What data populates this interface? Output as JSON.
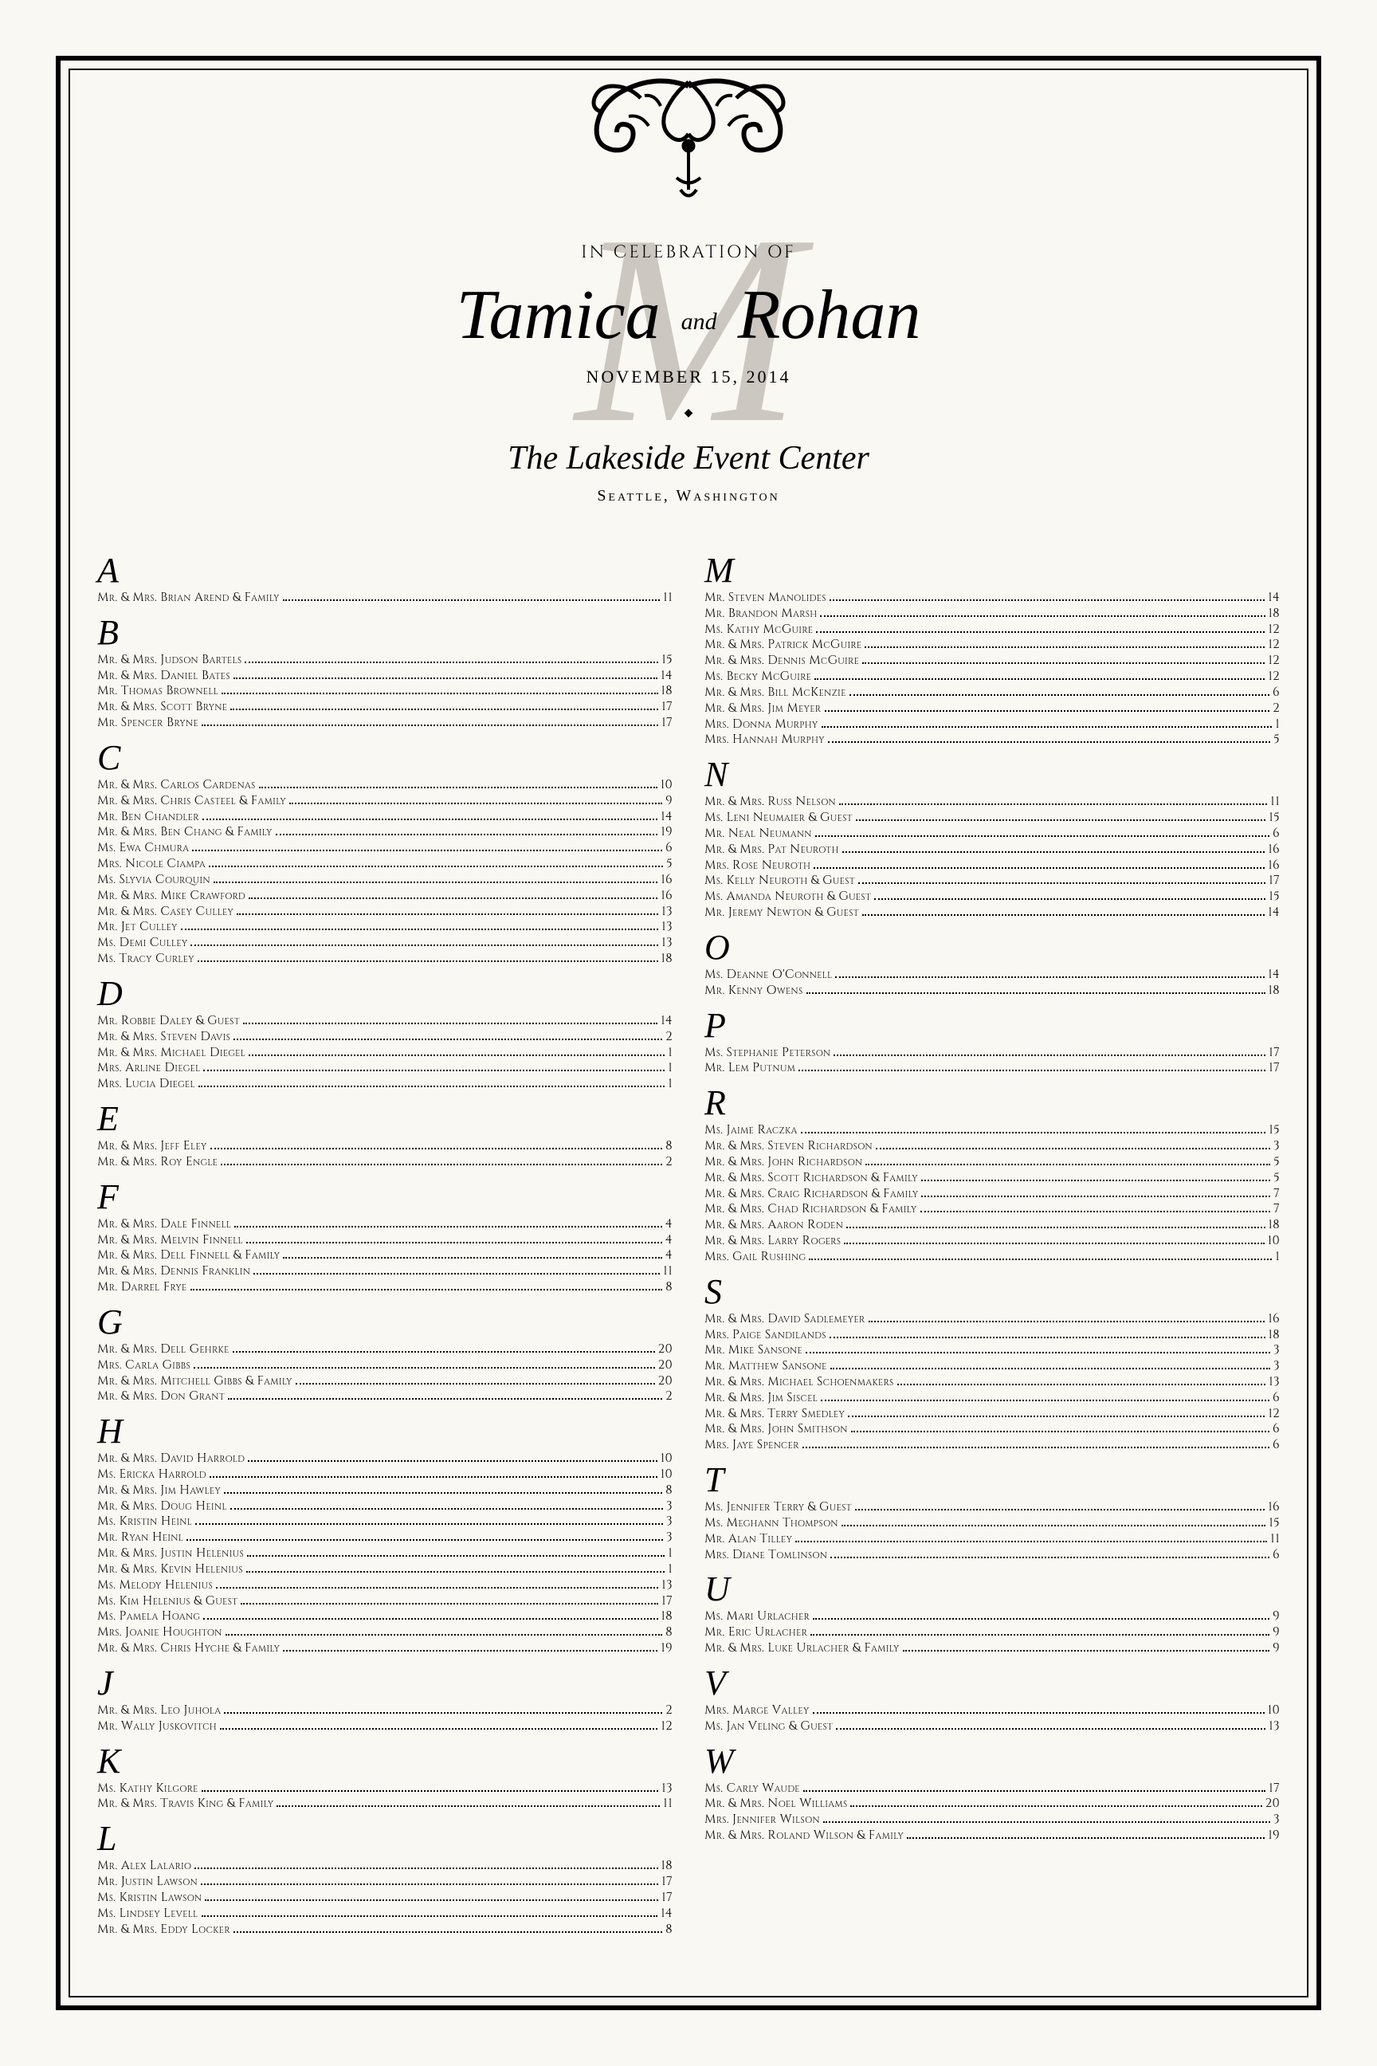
{
  "header": {
    "celebration": "in celebration of",
    "name1": "Tamica",
    "and": "and",
    "name2": "Rohan",
    "date": "November 15, 2014",
    "venue": "The Lakeside Event Center",
    "city": "Seattle, Washington",
    "monogram": "M"
  },
  "colors": {
    "background": "#faf8f3",
    "text": "#000000",
    "monogram": "#ccc7c0"
  },
  "left": [
    {
      "letter": "A",
      "rows": [
        {
          "n": "Mr. & Mrs. Brian Arend & Family",
          "t": "11"
        }
      ]
    },
    {
      "letter": "B",
      "rows": [
        {
          "n": "Mr. & Mrs. Judson Bartels",
          "t": "15"
        },
        {
          "n": "Mr. & Mrs. Daniel Bates",
          "t": "14"
        },
        {
          "n": "Mr. Thomas Brownell",
          "t": "18"
        },
        {
          "n": "Mr. & Mrs. Scott Bryne",
          "t": "17"
        },
        {
          "n": "Mr. Spencer Bryne",
          "t": "17"
        }
      ]
    },
    {
      "letter": "C",
      "rows": [
        {
          "n": "Mr. & Mrs. Carlos Cardenas",
          "t": "10"
        },
        {
          "n": "Mr. & Mrs. Chris Casteel & Family",
          "t": "9"
        },
        {
          "n": "Mr. Ben Chandler",
          "t": "14"
        },
        {
          "n": "Mr. & Mrs. Ben Chang & Family",
          "t": "19"
        },
        {
          "n": "Ms. Ewa Chmura",
          "t": "6"
        },
        {
          "n": "Mrs. Nicole Ciampa",
          "t": "5"
        },
        {
          "n": "Ms. Slyvia Courquin",
          "t": "16"
        },
        {
          "n": "Mr. & Mrs. Mike Crawford",
          "t": "16"
        },
        {
          "n": "Mr. & Mrs. Casey Culley",
          "t": "13"
        },
        {
          "n": "Mr. Jet Culley",
          "t": "13"
        },
        {
          "n": "Ms. Demi Culley",
          "t": "13"
        },
        {
          "n": "Ms. Tracy Curley",
          "t": "18"
        }
      ]
    },
    {
      "letter": "D",
      "rows": [
        {
          "n": "Mr. Robbie Daley & Guest",
          "t": "14"
        },
        {
          "n": "Mr. & Mrs. Steven Davis",
          "t": "2"
        },
        {
          "n": "Mr. & Mrs. Michael Diegel",
          "t": "1"
        },
        {
          "n": "Mrs. Arline Diegel",
          "t": "1"
        },
        {
          "n": "Mrs. Lucia Diegel",
          "t": "1"
        }
      ]
    },
    {
      "letter": "E",
      "rows": [
        {
          "n": "Mr. & Mrs. Jeff Eley",
          "t": "8"
        },
        {
          "n": "Mr. & Mrs. Roy Engle",
          "t": "2"
        }
      ]
    },
    {
      "letter": "F",
      "rows": [
        {
          "n": "Mr. & Mrs. Dale Finnell",
          "t": "4"
        },
        {
          "n": "Mr. & Mrs. Melvin Finnell",
          "t": "4"
        },
        {
          "n": "Mr. & Mrs. Dell Finnell & Family",
          "t": "4"
        },
        {
          "n": "Mr. & Mrs. Dennis Franklin",
          "t": "11"
        },
        {
          "n": "Mr. Darrel Frye",
          "t": "8"
        }
      ]
    },
    {
      "letter": "G",
      "rows": [
        {
          "n": "Mr. & Mrs. Dell Gehrke",
          "t": "20"
        },
        {
          "n": "Mrs. Carla Gibbs",
          "t": "20"
        },
        {
          "n": "Mr. & Mrs. Mitchell Gibbs & Family",
          "t": "20"
        },
        {
          "n": "Mr. & Mrs. Don Grant",
          "t": "2"
        }
      ]
    },
    {
      "letter": "H",
      "rows": [
        {
          "n": "Mr. & Mrs. David Harrold",
          "t": "10"
        },
        {
          "n": "Ms. Ericka Harrold",
          "t": "10"
        },
        {
          "n": "Mr. & Mrs. Jim Hawley",
          "t": "8"
        },
        {
          "n": "Mr. & Mrs. Doug Heinl",
          "t": "3"
        },
        {
          "n": "Ms. Kristin Heinl",
          "t": "3"
        },
        {
          "n": "Mr. Ryan Heinl",
          "t": "3"
        },
        {
          "n": "Mr. & Mrs. Justin Helenius",
          "t": "1"
        },
        {
          "n": "Mr. & Mrs. Kevin Helenius",
          "t": "1"
        },
        {
          "n": "Ms. Melody Helenius",
          "t": "13"
        },
        {
          "n": "Ms. Kim Helenius & Guest",
          "t": "17"
        },
        {
          "n": "Ms. Pamela Hoang",
          "t": "18"
        },
        {
          "n": "Mrs. Joanie Houghton",
          "t": "8"
        },
        {
          "n": "Mr. & Mrs. Chris Hyche & Family",
          "t": "19"
        }
      ]
    },
    {
      "letter": "J",
      "rows": [
        {
          "n": "Mr. & Mrs. Leo Juhola",
          "t": "2"
        },
        {
          "n": "Mr. Wally Juskovitch",
          "t": "12"
        }
      ]
    },
    {
      "letter": "K",
      "rows": [
        {
          "n": "Ms. Kathy Kilgore",
          "t": "13"
        },
        {
          "n": "Mr. & Mrs. Travis King & Family",
          "t": "11"
        }
      ]
    },
    {
      "letter": "L",
      "rows": [
        {
          "n": "Mr. Alex Lalario",
          "t": "18"
        },
        {
          "n": "Mr. Justin Lawson",
          "t": "17"
        },
        {
          "n": "Ms. Kristin Lawson",
          "t": "17"
        },
        {
          "n": "Ms. Lindsey Levell",
          "t": "14"
        },
        {
          "n": "Mr. & Mrs. Eddy Locker",
          "t": "8"
        }
      ]
    }
  ],
  "right": [
    {
      "letter": "M",
      "rows": [
        {
          "n": "Mr. Steven Manolides",
          "t": "14"
        },
        {
          "n": "Mr. Brandon Marsh",
          "t": "18"
        },
        {
          "n": "Ms. Kathy McGuire",
          "t": "12"
        },
        {
          "n": "Mr. & Mrs. Patrick McGuire",
          "t": "12"
        },
        {
          "n": "Mr. & Mrs. Dennis McGuire",
          "t": "12"
        },
        {
          "n": "Ms. Becky McGuire",
          "t": "12"
        },
        {
          "n": "Mr. & Mrs. Bill McKenzie",
          "t": "6"
        },
        {
          "n": "Mr. & Mrs. Jim Meyer",
          "t": "2"
        },
        {
          "n": "Mrs. Donna Murphy",
          "t": "1"
        },
        {
          "n": "Mrs. Hannah Murphy",
          "t": "5"
        }
      ]
    },
    {
      "letter": "N",
      "rows": [
        {
          "n": "Mr. & Mrs. Russ Nelson",
          "t": "11"
        },
        {
          "n": "Ms. Leni Neumaier & Guest",
          "t": "15"
        },
        {
          "n": "Mr. Neal Neumann",
          "t": "6"
        },
        {
          "n": "Mr. & Mrs. Pat Neuroth",
          "t": "16"
        },
        {
          "n": "Mrs. Rose Neuroth",
          "t": "16"
        },
        {
          "n": "Ms. Kelly Neuroth & Guest",
          "t": "17"
        },
        {
          "n": "Ms. Amanda Neuroth & Guest",
          "t": "15"
        },
        {
          "n": "Mr. Jeremy Newton & Guest",
          "t": "14"
        }
      ]
    },
    {
      "letter": "O",
      "rows": [
        {
          "n": "Ms. Deanne O'Connell",
          "t": "14"
        },
        {
          "n": "Mr. Kenny Owens",
          "t": "18"
        }
      ]
    },
    {
      "letter": "P",
      "rows": [
        {
          "n": "Ms. Stephanie Peterson",
          "t": "17"
        },
        {
          "n": "Mr. Lem Putnum",
          "t": "17"
        }
      ]
    },
    {
      "letter": "R",
      "rows": [
        {
          "n": "Ms. Jaime Raczka",
          "t": "15"
        },
        {
          "n": "Mr. & Mrs. Steven Richardson",
          "t": "3"
        },
        {
          "n": "Mr. & Mrs. John Richardson",
          "t": "5"
        },
        {
          "n": "Mr. & Mrs. Scott Richardson & Family",
          "t": "5"
        },
        {
          "n": "Mr. & Mrs. Craig Richardson & Family",
          "t": "7"
        },
        {
          "n": "Mr. & Mrs. Chad Richardson & Family",
          "t": "7"
        },
        {
          "n": "Mr. & Mrs. Aaron Roden",
          "t": "18"
        },
        {
          "n": "Mr. & Mrs. Larry Rogers",
          "t": "10"
        },
        {
          "n": "Mrs. Gail Rushing",
          "t": "1"
        }
      ]
    },
    {
      "letter": "S",
      "rows": [
        {
          "n": "Mr. & Mrs. David Sadlemeyer",
          "t": "16"
        },
        {
          "n": "Mrs. Paige Sandilands",
          "t": "18"
        },
        {
          "n": "Mr. Mike Sansone",
          "t": "3"
        },
        {
          "n": "Mr. Matthew Sansone",
          "t": "3"
        },
        {
          "n": "Mr. & Mrs. Michael Schoenmakers",
          "t": "13"
        },
        {
          "n": "Mr. & Mrs. Jim Siscel",
          "t": "6"
        },
        {
          "n": "Mr. & Mrs. Terry Smedley",
          "t": "12"
        },
        {
          "n": "Mr. & Mrs. John Smithson",
          "t": "6"
        },
        {
          "n": "Mrs. Jaye Spencer",
          "t": "6"
        }
      ]
    },
    {
      "letter": "T",
      "rows": [
        {
          "n": "Ms. Jennifer Terry & Guest",
          "t": "16"
        },
        {
          "n": "Ms. Meghann Thompson",
          "t": "15"
        },
        {
          "n": "Mr. Alan Tilley",
          "t": "11"
        },
        {
          "n": "Mrs. Diane Tomlinson",
          "t": "6"
        }
      ]
    },
    {
      "letter": "U",
      "rows": [
        {
          "n": "Ms. Mari Urlacher",
          "t": "9"
        },
        {
          "n": "Mr. Eric Urlacher",
          "t": "9"
        },
        {
          "n": "Mr. & Mrs. Luke Urlacher & Family",
          "t": "9"
        }
      ]
    },
    {
      "letter": "V",
      "rows": [
        {
          "n": "Mrs. Marge Valley",
          "t": "10"
        },
        {
          "n": "Ms. Jan Veling & Guest",
          "t": "13"
        }
      ]
    },
    {
      "letter": "W",
      "rows": [
        {
          "n": "Ms. Carly Waude",
          "t": "17"
        },
        {
          "n": "Mr. & Mrs. Noel Williams",
          "t": "20"
        },
        {
          "n": "Mrs. Jennifer Wilson",
          "t": "3"
        },
        {
          "n": "Mr. & Mrs. Roland Wilson & Family",
          "t": "19"
        }
      ]
    }
  ]
}
